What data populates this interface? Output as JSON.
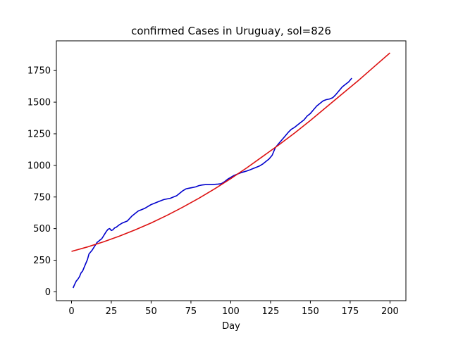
{
  "chart_data": {
    "type": "line",
    "title": "confirmed Cases in Uruguay, sol=826",
    "xlabel": "Day",
    "ylabel": "",
    "xlim": [
      -9.5,
      210
    ],
    "ylim": [
      -70,
      1985
    ],
    "xticks": [
      0,
      25,
      50,
      75,
      100,
      125,
      150,
      175,
      200
    ],
    "yticks": [
      0,
      250,
      500,
      750,
      1000,
      1250,
      1500,
      1750
    ],
    "grid": false,
    "legend": "none",
    "series": [
      {
        "color": "#0000cc",
        "x": [
          1,
          2,
          3,
          4,
          5,
          6,
          7,
          8,
          9,
          10,
          11,
          12,
          13,
          14,
          15,
          16,
          17,
          18,
          19,
          20,
          21,
          22,
          23,
          24,
          25,
          26,
          27,
          28,
          30,
          32,
          35,
          38,
          41,
          42,
          44,
          46,
          48,
          50,
          52,
          54,
          56,
          58,
          60,
          62,
          64,
          66,
          68,
          70,
          72,
          74,
          76,
          78,
          80,
          82,
          84,
          86,
          88,
          90,
          92,
          94,
          96,
          98,
          100,
          102,
          104,
          106,
          108,
          110,
          112,
          114,
          116,
          118,
          120,
          122,
          124,
          126,
          128,
          130,
          132,
          134,
          136,
          138,
          140,
          142,
          144,
          146,
          148,
          150,
          152,
          154,
          155,
          156,
          158,
          160,
          162,
          164,
          166,
          168,
          170,
          172,
          174,
          176
        ],
        "y": [
          30,
          60,
          85,
          100,
          120,
          150,
          165,
          195,
          225,
          255,
          300,
          315,
          330,
          350,
          370,
          390,
          400,
          410,
          420,
          440,
          460,
          480,
          495,
          500,
          485,
          490,
          505,
          510,
          530,
          545,
          560,
          600,
          630,
          640,
          650,
          660,
          675,
          690,
          700,
          710,
          720,
          730,
          735,
          740,
          750,
          760,
          780,
          800,
          815,
          820,
          825,
          830,
          840,
          845,
          848,
          848,
          848,
          850,
          852,
          855,
          870,
          890,
          905,
          920,
          930,
          940,
          948,
          955,
          965,
          975,
          985,
          995,
          1010,
          1030,
          1050,
          1080,
          1140,
          1170,
          1200,
          1230,
          1260,
          1285,
          1300,
          1320,
          1340,
          1360,
          1390,
          1410,
          1440,
          1470,
          1480,
          1490,
          1510,
          1520,
          1525,
          1535,
          1560,
          1590,
          1620,
          1640,
          1660,
          1690
        ]
      },
      {
        "color": "#dd1111",
        "x": [
          0,
          10,
          20,
          30,
          40,
          50,
          60,
          70,
          80,
          90,
          100,
          110,
          120,
          130,
          140,
          150,
          160,
          170,
          180,
          190,
          200
        ],
        "y": [
          320,
          355,
          395,
          440,
          490,
          545,
          605,
          670,
          740,
          815,
          895,
          980,
          1070,
          1160,
          1255,
          1355,
          1460,
          1565,
          1670,
          1780,
          1890
        ]
      }
    ]
  }
}
